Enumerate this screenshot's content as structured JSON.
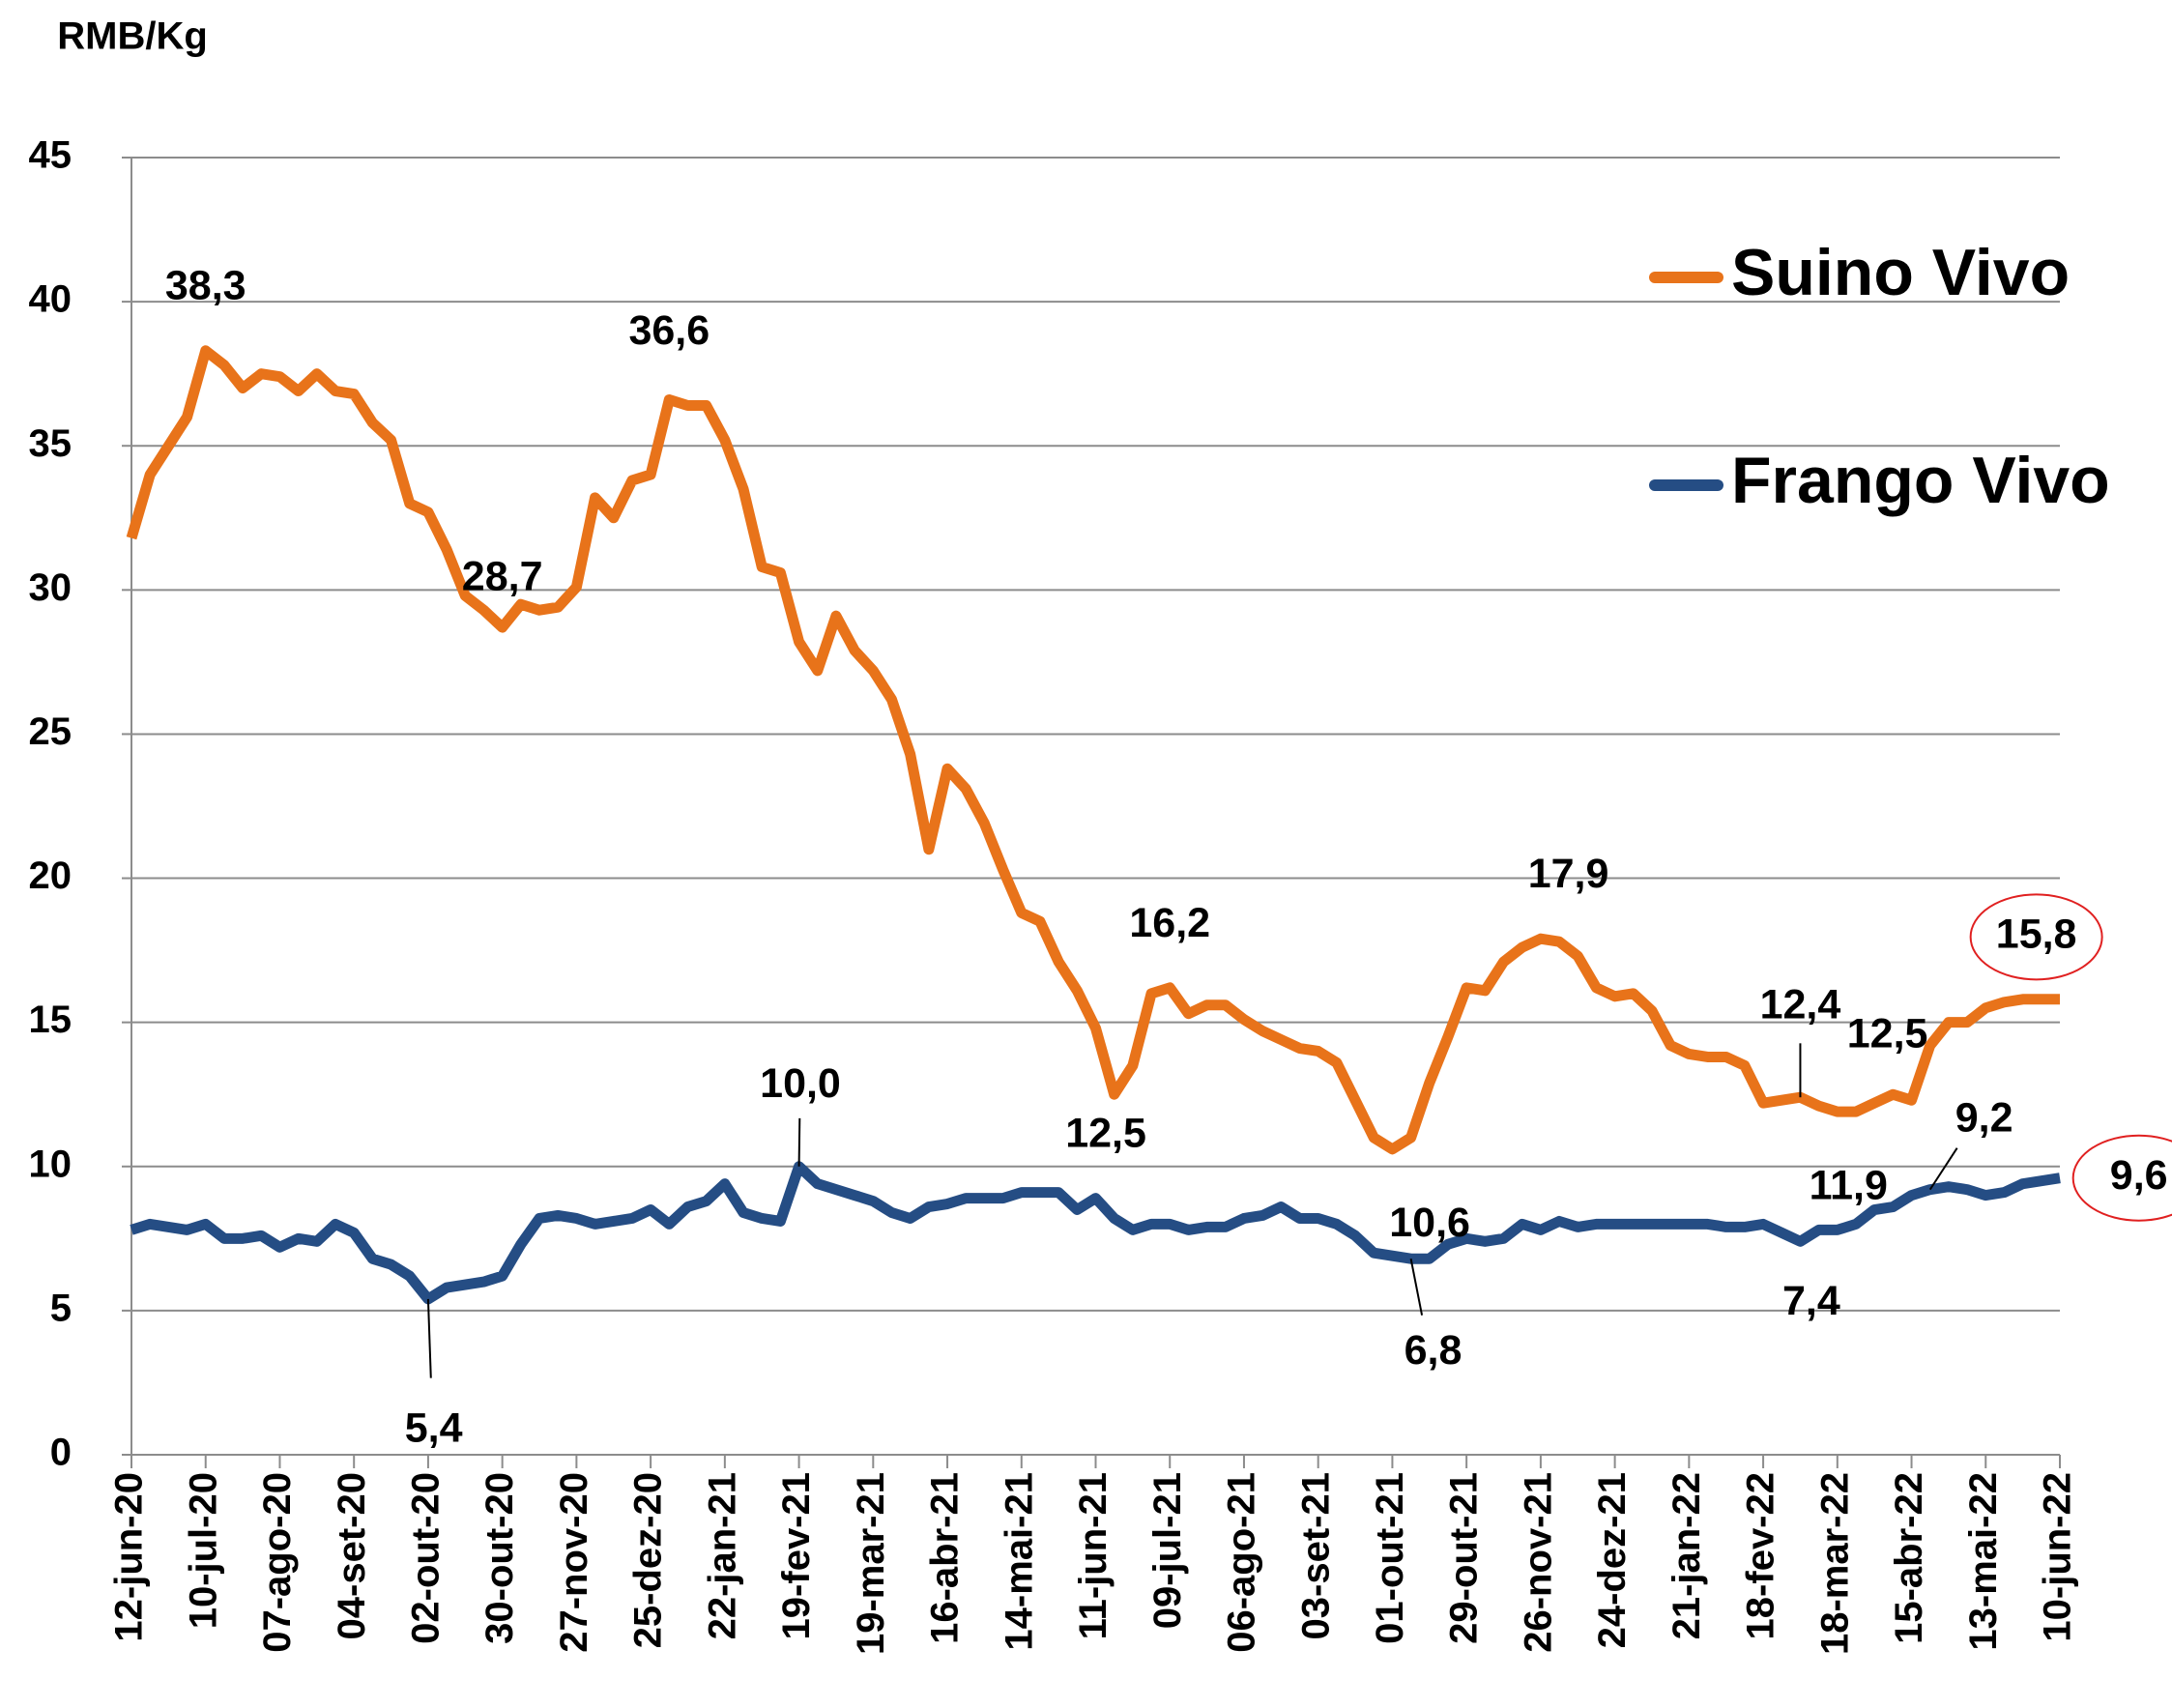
{
  "chart_data": {
    "type": "line",
    "y_label": "RMB/Kg",
    "categories": [
      "12-jun-20",
      null,
      null,
      null,
      "10-jul-20",
      null,
      null,
      null,
      "07-ago-20",
      null,
      null,
      null,
      "04-set-20",
      null,
      null,
      null,
      "02-out-20",
      null,
      null,
      null,
      "30-out-20",
      null,
      null,
      null,
      "27-nov-20",
      null,
      null,
      null,
      "25-dez-20",
      null,
      null,
      null,
      "22-jan-21",
      null,
      null,
      null,
      "19-fev-21",
      null,
      null,
      null,
      "19-mar-21",
      null,
      null,
      null,
      "16-abr-21",
      null,
      null,
      null,
      "14-mai-21",
      null,
      null,
      null,
      "11-jun-21",
      null,
      null,
      null,
      "09-jul-21",
      null,
      null,
      null,
      "06-ago-21",
      null,
      null,
      null,
      "03-set-21",
      null,
      null,
      null,
      "01-out-21",
      null,
      null,
      null,
      "29-out-21",
      null,
      null,
      null,
      "26-nov-21",
      null,
      null,
      null,
      "24-dez-21",
      null,
      null,
      null,
      "21-jan-22",
      null,
      null,
      null,
      "18-fev-22",
      null,
      null,
      null,
      "18-mar-22",
      null,
      null,
      null,
      "15-abr-22",
      null,
      null,
      null,
      "13-mai-22",
      null,
      null,
      null,
      "10-jun-22"
    ],
    "series": [
      {
        "name": "Suino Vivo",
        "color": "#e8731a",
        "values": [
          31.8,
          34,
          35,
          36,
          38.3,
          37.8,
          37,
          37.5,
          37.4,
          36.9,
          37.5,
          36.9,
          36.8,
          35.8,
          35.2,
          33,
          32.7,
          31.4,
          29.8,
          29.3,
          28.7,
          29.5,
          29.3,
          29.4,
          30.1,
          33.2,
          32.5,
          33.8,
          34,
          36.6,
          36.4,
          36.4,
          35.2,
          33.5,
          30.8,
          30.6,
          28.2,
          27.2,
          29.1,
          27.9,
          27.2,
          26.2,
          24.3,
          21,
          23.8,
          23.1,
          21.9,
          20.3,
          18.8,
          18.5,
          17.1,
          16.1,
          14.8,
          12.5,
          13.5,
          16,
          16.2,
          15.3,
          15.6,
          15.6,
          15.1,
          14.7,
          14.4,
          14.1,
          14,
          13.6,
          12.3,
          11,
          10.6,
          11,
          12.9,
          14.5,
          16.2,
          16.1,
          17.1,
          17.6,
          17.9,
          17.8,
          17.3,
          16.2,
          15.9,
          16,
          15.4,
          14.2,
          13.9,
          13.8,
          13.8,
          13.5,
          12.2,
          12.3,
          12.4,
          12.1,
          11.9,
          11.9,
          12.2,
          12.5,
          12.3,
          14.2,
          15,
          15,
          15.5,
          15.7,
          15.8,
          15.8,
          15.8
        ],
        "value_labels": [
          null,
          null,
          null,
          null,
          "38,3",
          null,
          null,
          null,
          null,
          null,
          null,
          null,
          null,
          null,
          null,
          null,
          null,
          null,
          null,
          null,
          "28,7",
          null,
          null,
          null,
          null,
          null,
          null,
          null,
          null,
          "36,6",
          null,
          null,
          null,
          null,
          null,
          null,
          null,
          null,
          null,
          null,
          null,
          null,
          null,
          null,
          null,
          null,
          null,
          null,
          null,
          null,
          null,
          null,
          null,
          "12,5",
          null,
          null,
          "16,2",
          null,
          null,
          null,
          null,
          null,
          null,
          null,
          null,
          null,
          null,
          null,
          "10,6",
          null,
          null,
          null,
          null,
          null,
          null,
          null,
          "17,9",
          null,
          null,
          null,
          null,
          null,
          null,
          null,
          null,
          null,
          null,
          null,
          null,
          null,
          "12,4",
          null,
          "11,9",
          null,
          null,
          "12,5",
          null,
          null,
          null,
          null,
          null,
          null,
          null,
          null,
          "15,8"
        ]
      },
      {
        "name": "Frango Vivo",
        "color": "#254d84",
        "values": [
          7.8,
          8,
          7.9,
          7.8,
          8,
          7.5,
          7.5,
          7.6,
          7.2,
          7.5,
          7.4,
          8,
          7.7,
          6.8,
          6.6,
          6.2,
          5.4,
          5.8,
          5.9,
          6,
          6.2,
          7.3,
          8.2,
          8.3,
          8.2,
          8,
          8.1,
          8.2,
          8.5,
          8,
          8.6,
          8.8,
          9.4,
          8.4,
          8.2,
          8.1,
          10,
          9.4,
          9.2,
          9,
          8.8,
          8.4,
          8.2,
          8.6,
          8.7,
          8.9,
          8.9,
          8.9,
          9.1,
          9.1,
          9.1,
          8.5,
          8.9,
          8.2,
          7.8,
          8,
          8,
          7.8,
          7.9,
          7.9,
          8.2,
          8.3,
          8.6,
          8.2,
          8.2,
          8,
          7.6,
          7,
          6.9,
          6.8,
          6.8,
          7.3,
          7.5,
          7.4,
          7.5,
          8,
          7.8,
          8.1,
          7.9,
          8,
          8,
          8,
          8,
          8,
          8,
          8,
          7.9,
          7.9,
          8,
          7.7,
          7.4,
          7.8,
          7.8,
          8,
          8.5,
          8.6,
          9,
          9.2,
          9.3,
          9.2,
          9,
          9.1,
          9.4,
          9.5,
          9.6
        ],
        "value_labels": [
          null,
          null,
          null,
          null,
          null,
          null,
          null,
          null,
          null,
          null,
          null,
          null,
          null,
          null,
          null,
          null,
          "5,4",
          null,
          null,
          null,
          null,
          null,
          null,
          null,
          null,
          null,
          null,
          null,
          null,
          null,
          null,
          null,
          null,
          null,
          null,
          null,
          "10,0",
          null,
          null,
          null,
          null,
          null,
          null,
          null,
          null,
          null,
          null,
          null,
          null,
          null,
          null,
          null,
          null,
          null,
          null,
          null,
          null,
          null,
          null,
          null,
          null,
          null,
          null,
          null,
          null,
          null,
          null,
          null,
          null,
          "6,8",
          null,
          null,
          null,
          null,
          null,
          null,
          null,
          null,
          null,
          null,
          null,
          null,
          null,
          null,
          null,
          null,
          null,
          null,
          null,
          null,
          "7,4",
          null,
          null,
          null,
          null,
          null,
          null,
          "9,2",
          null,
          null,
          null,
          null,
          null,
          null,
          "9,6"
        ]
      }
    ],
    "ylim": [
      0,
      45
    ],
    "yticks": [
      0,
      5,
      10,
      15,
      20,
      25,
      30,
      35,
      40,
      45
    ],
    "grid": true
  }
}
